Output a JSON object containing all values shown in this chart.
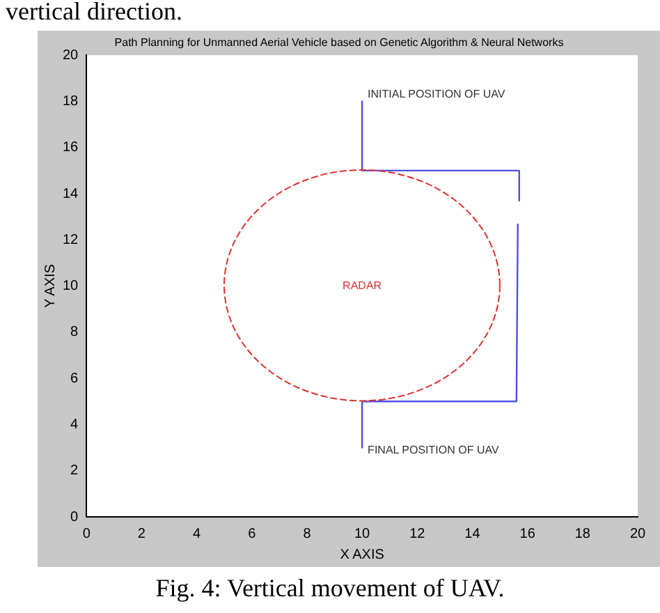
{
  "chart_data": {
    "type": "line",
    "title": "Path Planning for Unmanned Aerial Vehicle based on Genetic Algorithm & Neural Networks",
    "xlabel": "X AXIS",
    "ylabel": "Y AXIS",
    "xlim": [
      0,
      20
    ],
    "ylim": [
      0,
      20
    ],
    "xticks": [
      0,
      2,
      4,
      6,
      8,
      10,
      12,
      14,
      16,
      18,
      20
    ],
    "yticks": [
      0,
      2,
      4,
      6,
      8,
      10,
      12,
      14,
      16,
      18,
      20
    ],
    "grid": false,
    "legend": false,
    "marker": "none",
    "series": [
      {
        "color": "#5050e0",
        "line_style": "solid",
        "x": [
          10,
          10,
          15.7,
          15.7,
          null,
          15.65,
          15.6,
          10,
          10
        ],
        "values": [
          18,
          15,
          15,
          13.7,
          null,
          12.7,
          5,
          5,
          3
        ]
      }
    ],
    "annotations": [
      "vertical direction.",
      "Fig. 4: Vertical movement of UAV.",
      "RADAR",
      "INITIAL POSITION OF UAV",
      "FINAL POSITION OF UAV"
    ]
  }
}
